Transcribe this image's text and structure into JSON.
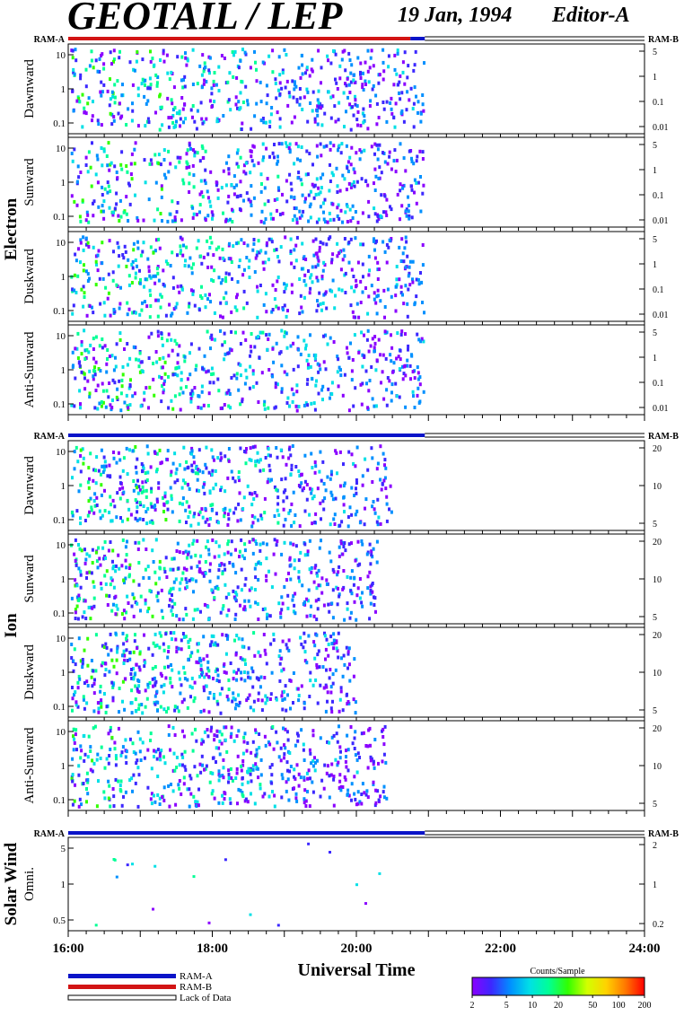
{
  "header": {
    "title": "GEOTAIL / LEP",
    "date": "19 Jan, 1994",
    "editor": "Editor-A"
  },
  "colors": {
    "ram_a": "#0a14c8",
    "ram_b": "#d21414",
    "colorbar": [
      "#8a00ff",
      "#3c28ff",
      "#0090ff",
      "#00e0e6",
      "#00ff96",
      "#32ff00",
      "#d2ff00",
      "#ffd200",
      "#ff7800",
      "#ff0000"
    ]
  },
  "chart_data": {
    "type": "heatmap",
    "x_axis": {
      "label": "Universal Time",
      "ticks": [
        "16:00",
        "18:00",
        "20:00",
        "22:00",
        "24:00"
      ],
      "range_hours": [
        16,
        24
      ]
    },
    "colorbar": {
      "title": "Counts/Sample",
      "ticks": [
        "2",
        "5",
        "10",
        "20",
        "50",
        "100",
        "200"
      ],
      "range": [
        2,
        200
      ],
      "scale": "log"
    },
    "legend": [
      {
        "key": "ram_a",
        "label": "RAM-A"
      },
      {
        "key": "ram_b",
        "label": "RAM-B"
      },
      {
        "key": "nodata",
        "label": "Lack of Data"
      }
    ],
    "groups": [
      {
        "name": "Electron",
        "ram_left": "RAM-A",
        "ram_right": "RAM-B",
        "mode_bar": [
          {
            "start": 16.0,
            "end": 20.75,
            "mode": "ram_b"
          },
          {
            "start": 20.75,
            "end": 20.95,
            "mode": "ram_a"
          },
          {
            "start": 20.95,
            "end": 24.0,
            "mode": "nodata"
          }
        ],
        "yticks_left": [
          "10",
          "1",
          "0.1"
        ],
        "yticks_right": [
          "5",
          "1",
          "0.1",
          "0.01"
        ],
        "panels": [
          {
            "label": "Dawnward",
            "data_end": 20.95
          },
          {
            "label": "Sunward",
            "data_end": 20.95
          },
          {
            "label": "Duskward",
            "data_end": 20.95
          },
          {
            "label": "Anti-Sunward",
            "data_end": 20.95
          }
        ]
      },
      {
        "name": "Ion",
        "ram_left": "RAM-A",
        "ram_right": "RAM-B",
        "mode_bar": [
          {
            "start": 16.0,
            "end": 20.95,
            "mode": "ram_a"
          },
          {
            "start": 20.95,
            "end": 24.0,
            "mode": "nodata"
          }
        ],
        "yticks_left": [
          "10",
          "1",
          "0.1"
        ],
        "yticks_right": [
          "20",
          "10",
          "5"
        ],
        "panels": [
          {
            "label": "Dawnward",
            "data_end": 20.5
          },
          {
            "label": "Sunward",
            "data_end": 20.3
          },
          {
            "label": "Duskward",
            "data_end": 20.0
          },
          {
            "label": "Anti-Sunward",
            "data_end": 20.45
          }
        ]
      },
      {
        "name": "Solar Wind",
        "ram_left": "RAM-A",
        "ram_right": "RAM-B",
        "mode_bar": [
          {
            "start": 16.0,
            "end": 20.95,
            "mode": "ram_a"
          },
          {
            "start": 20.95,
            "end": 24.0,
            "mode": "nodata"
          }
        ],
        "yticks_left": [
          "5",
          "1",
          "0.5"
        ],
        "yticks_right": [
          "2",
          "1",
          "0.2"
        ],
        "panels": [
          {
            "label": "Omni.",
            "data_end": 20.5
          }
        ]
      }
    ]
  }
}
